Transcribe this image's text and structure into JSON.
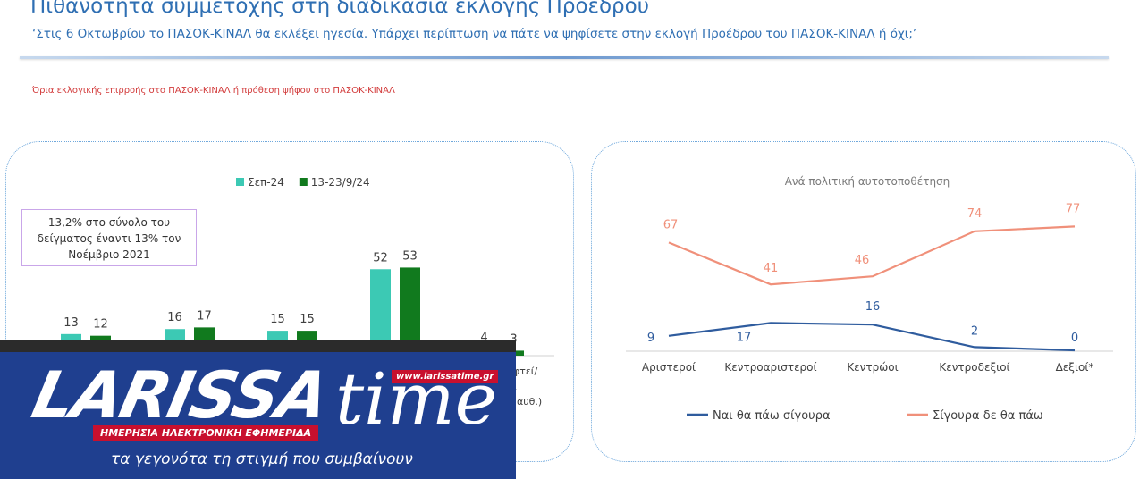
{
  "header": {
    "title": "Πιθανότητα συμμετοχής στη διαδικασία εκλογής Προέδρου",
    "subtitle": "‘Στις 6 Οκτωβρίου το ΠΑΣΟΚ-ΚΙΝΑΛ θα εκλέξει ηγεσία. Υπάρχει περίπτωση να πάτε να ψηφίσετε στην εκλογή Προέδρου του ΠΑΣΟΚ-ΚΙΝΑΛ ή όχι;’",
    "note": "Όρια εκλογικής επιρροής στο ΠΑΣΟΚ-ΚΙΝΑΛ ή πρόθεση ψήφου στο ΠΑΣΟΚ-ΚΙΝΑΛ"
  },
  "colors": {
    "teal": "#3cc9b4",
    "green": "#117a1e",
    "blue": "#2f5c9e",
    "orange": "#f0907a",
    "title": "#2f6fb3",
    "note_red": "#d23a3a"
  },
  "chart_data": [
    {
      "type": "bar",
      "series": [
        {
          "name": "Σεπ-24",
          "values": [
            13,
            16,
            15,
            52,
            4
          ]
        },
        {
          "name": "13-23/9/24",
          "values": [
            12,
            17,
            15,
            53,
            3
          ]
        }
      ],
      "visible_category_fragments": [
        "εφτεί/",
        "ι",
        "αυθ.)"
      ],
      "annotation": [
        "13,2% στο σύνολο του",
        "δείγματος έναντι 13% τον",
        "Νοέμβριο 2021"
      ],
      "legend": "top"
    },
    {
      "type": "line",
      "title": "Ανά πολιτική αυτοτοποθέτηση",
      "categories": [
        "Αριστεροί",
        "Κεντροαριστεροί",
        "Κεντρώοι",
        "Κεντροδεξιοί",
        "Δεξιοί*"
      ],
      "series": [
        {
          "name": "Ναι θα πάω σίγουρα",
          "values": [
            9,
            17,
            16,
            2,
            0
          ]
        },
        {
          "name": "Σίγουρα δε θα πάω",
          "values": [
            67,
            41,
            46,
            74,
            77
          ]
        }
      ],
      "legend": "bottom"
    }
  ],
  "logo": {
    "name": "LARISSA",
    "time": "time",
    "url": "www.larissatime.gr",
    "tagline": "ΗΜΕΡΗΣΙΑ ΗΛΕΚΤΡΟΝΙΚΗ ΕΦΗΜΕΡΙΔΑ",
    "slogan": "τα γεγονότα τη στιγμή που συμβαίνουν"
  }
}
